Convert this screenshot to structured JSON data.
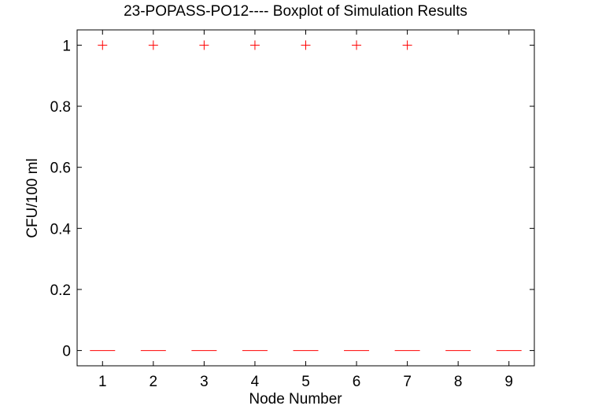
{
  "chart_data": {
    "type": "boxplot",
    "title": "23-POPASS-PO12---- Boxplot of Simulation Results",
    "xlabel": "Node Number",
    "ylabel": "CFU/100 ml",
    "categories": [
      "1",
      "2",
      "3",
      "4",
      "5",
      "6",
      "7",
      "8",
      "9"
    ],
    "xlim": [
      0.5,
      9.5
    ],
    "ylim": [
      -0.05,
      1.05
    ],
    "yticks": [
      0,
      0.2,
      0.4,
      0.6,
      0.8,
      1
    ],
    "ytick_labels": [
      "0",
      "0.2",
      "0.4",
      "0.6",
      "0.8",
      "1"
    ],
    "medians": [
      0,
      0,
      0,
      0,
      0,
      0,
      0,
      0,
      0
    ],
    "outliers": [
      {
        "node": 1,
        "value": 1
      },
      {
        "node": 2,
        "value": 1
      },
      {
        "node": 3,
        "value": 1
      },
      {
        "node": 4,
        "value": 1
      },
      {
        "node": 5,
        "value": 1
      },
      {
        "node": 6,
        "value": 1
      },
      {
        "node": 7,
        "value": 1
      }
    ],
    "grid": false,
    "median_color": "#ff0000",
    "outlier_color": "#ff0000",
    "axis_color": "#000000"
  }
}
